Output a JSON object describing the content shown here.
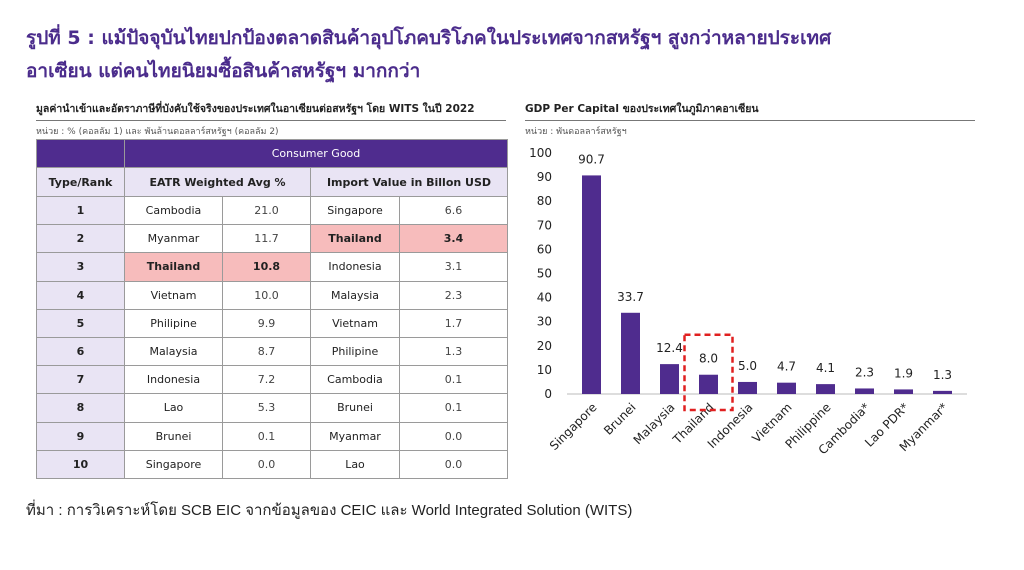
{
  "title": {
    "line1": "รูปที่ 5 : แม้ปัจจุบันไทยปกป้องตลาดสินค้าอุปโภคบริโภคในประเทศจากสหรัฐฯ สูงกว่าหลายประเทศ",
    "line2": "อาเซียน แต่คนไทยนิยมซื้อสินค้าสหรัฐฯ มากกว่า"
  },
  "left": {
    "heading": "มูลค่านำเข้าและอัตราภาษีที่บังคับใช้จริงของประเทศในอาเซียนต่อสหรัฐฯ โดย WITS ในปี 2022",
    "unit": "หน่วย : % (คอลลัม 1) และ พันล้านดอลลาร์สหรัฐฯ (คอลลัม 2)",
    "group_header": "Consumer Good",
    "columns": [
      "Type/Rank",
      "EATR Weighted Avg %",
      "Import Value in Billon USD"
    ],
    "rows": [
      {
        "rank": "1",
        "eatr_country": "Cambodia",
        "eatr": "21.0",
        "imp_country": "Singapore",
        "imp": "6.6"
      },
      {
        "rank": "2",
        "eatr_country": "Myanmar",
        "eatr": "11.7",
        "imp_country": "Thailand",
        "imp": "3.4"
      },
      {
        "rank": "3",
        "eatr_country": "Thailand",
        "eatr": "10.8",
        "imp_country": "Indonesia",
        "imp": "3.1"
      },
      {
        "rank": "4",
        "eatr_country": "Vietnam",
        "eatr": "10.0",
        "imp_country": "Malaysia",
        "imp": "2.3"
      },
      {
        "rank": "5",
        "eatr_country": "Philipine",
        "eatr": "9.9",
        "imp_country": "Vietnam",
        "imp": "1.7"
      },
      {
        "rank": "6",
        "eatr_country": "Malaysia",
        "eatr": "8.7",
        "imp_country": "Philipine",
        "imp": "1.3"
      },
      {
        "rank": "7",
        "eatr_country": "Indonesia",
        "eatr": "7.2",
        "imp_country": "Cambodia",
        "imp": "0.1"
      },
      {
        "rank": "8",
        "eatr_country": "Lao",
        "eatr": "5.3",
        "imp_country": "Brunei",
        "imp": "0.1"
      },
      {
        "rank": "9",
        "eatr_country": "Brunei",
        "eatr": "0.1",
        "imp_country": "Myanmar",
        "imp": "0.0"
      },
      {
        "rank": "10",
        "eatr_country": "Singapore",
        "eatr": "0.0",
        "imp_country": "Lao",
        "imp": "0.0"
      }
    ],
    "highlight_color": "#f7bcbc",
    "header_color": "#4f2c8e"
  },
  "right": {
    "heading": "GDP Per Capital ของประเทศในภูมิภาคอาเซียน",
    "unit": "หน่วย : พันดอลลาร์สหรัฐฯ"
  },
  "chart_data": {
    "type": "bar",
    "title": "GDP Per Capital ของประเทศในภูมิภาคอาเซียน",
    "categories": [
      "Singapore",
      "Brunei",
      "Malaysia",
      "Thailand",
      "Indonesia",
      "Vietnam",
      "Philippine",
      "Cambodia*",
      "Lao PDR*",
      "Myanmar*"
    ],
    "values": [
      90.7,
      33.7,
      12.4,
      8.0,
      5.0,
      4.7,
      4.1,
      2.3,
      1.9,
      1.3
    ],
    "value_labels": [
      "90.7",
      "33.7",
      "12.4",
      "8.0",
      "5.0",
      "4.7",
      "4.1",
      "2.3",
      "1.9",
      "1.3"
    ],
    "yticks": [
      0,
      10,
      20,
      30,
      40,
      50,
      60,
      70,
      80,
      90,
      100
    ],
    "ylim": [
      0,
      100
    ],
    "bar_color": "#4f2c8e",
    "highlight_category": "Thailand",
    "highlight_color": "#e02020",
    "grid": false,
    "legend": "none"
  },
  "source": "ที่มา : การวิเคราะห์โดย SCB EIC จากข้อมูลของ CEIC และ World Integrated Solution (WITS)"
}
